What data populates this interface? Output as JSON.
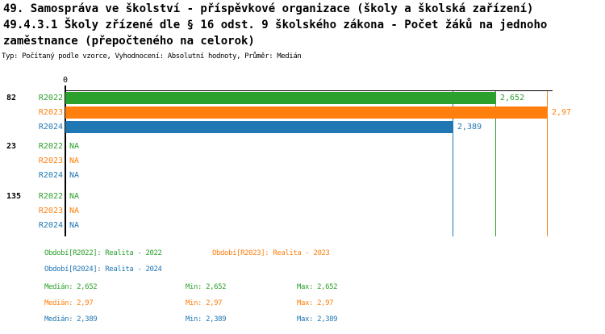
{
  "header": {
    "title_lines": [
      "49. Samospráva ve školství - příspěvkové organizace (školy a školská zařízení)",
      "49.4.3.1 Školy zřízené dle § 16 odst. 9 školského zákona - Počet žáků na jednoho",
      "zaměstnance (přepočteného na celorok)"
    ],
    "subtitle": "Typ: Počítaný podle vzorce, Vyhodnocení: Absolutní hodnoty, Průměr: Medián"
  },
  "colors": {
    "green": "#2ca02c",
    "orange": "#ff7f0e",
    "blue": "#1f77b4",
    "axis": "#000000",
    "title_text": "#000000",
    "background": "#ffffff"
  },
  "chart_data": {
    "type": "bar",
    "orientation": "horizontal",
    "x_axis": {
      "min": 0,
      "max": 3,
      "origin_tick_label": "0"
    },
    "groups": [
      {
        "label": "82",
        "bars": [
          {
            "series": "R2022",
            "value": 2.652,
            "value_label": "2,652",
            "color_key": "green"
          },
          {
            "series": "R2023",
            "value": 2.97,
            "value_label": "2,97",
            "color_key": "orange"
          },
          {
            "series": "R2024",
            "value": 2.389,
            "value_label": "2,389",
            "color_key": "blue"
          }
        ]
      },
      {
        "label": "23",
        "bars": [
          {
            "series": "R2022",
            "value": null,
            "value_label": "NA",
            "color_key": "green"
          },
          {
            "series": "R2023",
            "value": null,
            "value_label": "NA",
            "color_key": "orange"
          },
          {
            "series": "R2024",
            "value": null,
            "value_label": "NA",
            "color_key": "blue"
          }
        ]
      },
      {
        "label": "135",
        "bars": [
          {
            "series": "R2022",
            "value": null,
            "value_label": "NA",
            "color_key": "green"
          },
          {
            "series": "R2023",
            "value": null,
            "value_label": "NA",
            "color_key": "orange"
          },
          {
            "series": "R2024",
            "value": null,
            "value_label": "NA",
            "color_key": "blue"
          }
        ]
      }
    ],
    "reference_lines": [
      {
        "value": 2.652,
        "color_key": "green"
      },
      {
        "value": 2.97,
        "color_key": "orange"
      },
      {
        "value": 2.389,
        "color_key": "blue"
      }
    ]
  },
  "legend": {
    "items": [
      {
        "label": "Období[R2022]: Realita - 2022",
        "color_key": "green"
      },
      {
        "label": "Období[R2023]: Realita - 2023",
        "color_key": "orange"
      },
      {
        "label": "Období[R2024]: Realita - 2024",
        "color_key": "blue"
      }
    ]
  },
  "stats": {
    "rows": [
      {
        "median": "Medián: 2,652",
        "min": "Min: 2,652",
        "max": "Max: 2,652",
        "color_key": "green"
      },
      {
        "median": "Medián: 2,97",
        "min": "Min: 2,97",
        "max": "Max: 2,97",
        "color_key": "orange"
      },
      {
        "median": "Medián: 2,389",
        "min": "Min: 2,389",
        "max": "Max: 2,389",
        "color_key": "blue"
      }
    ]
  }
}
